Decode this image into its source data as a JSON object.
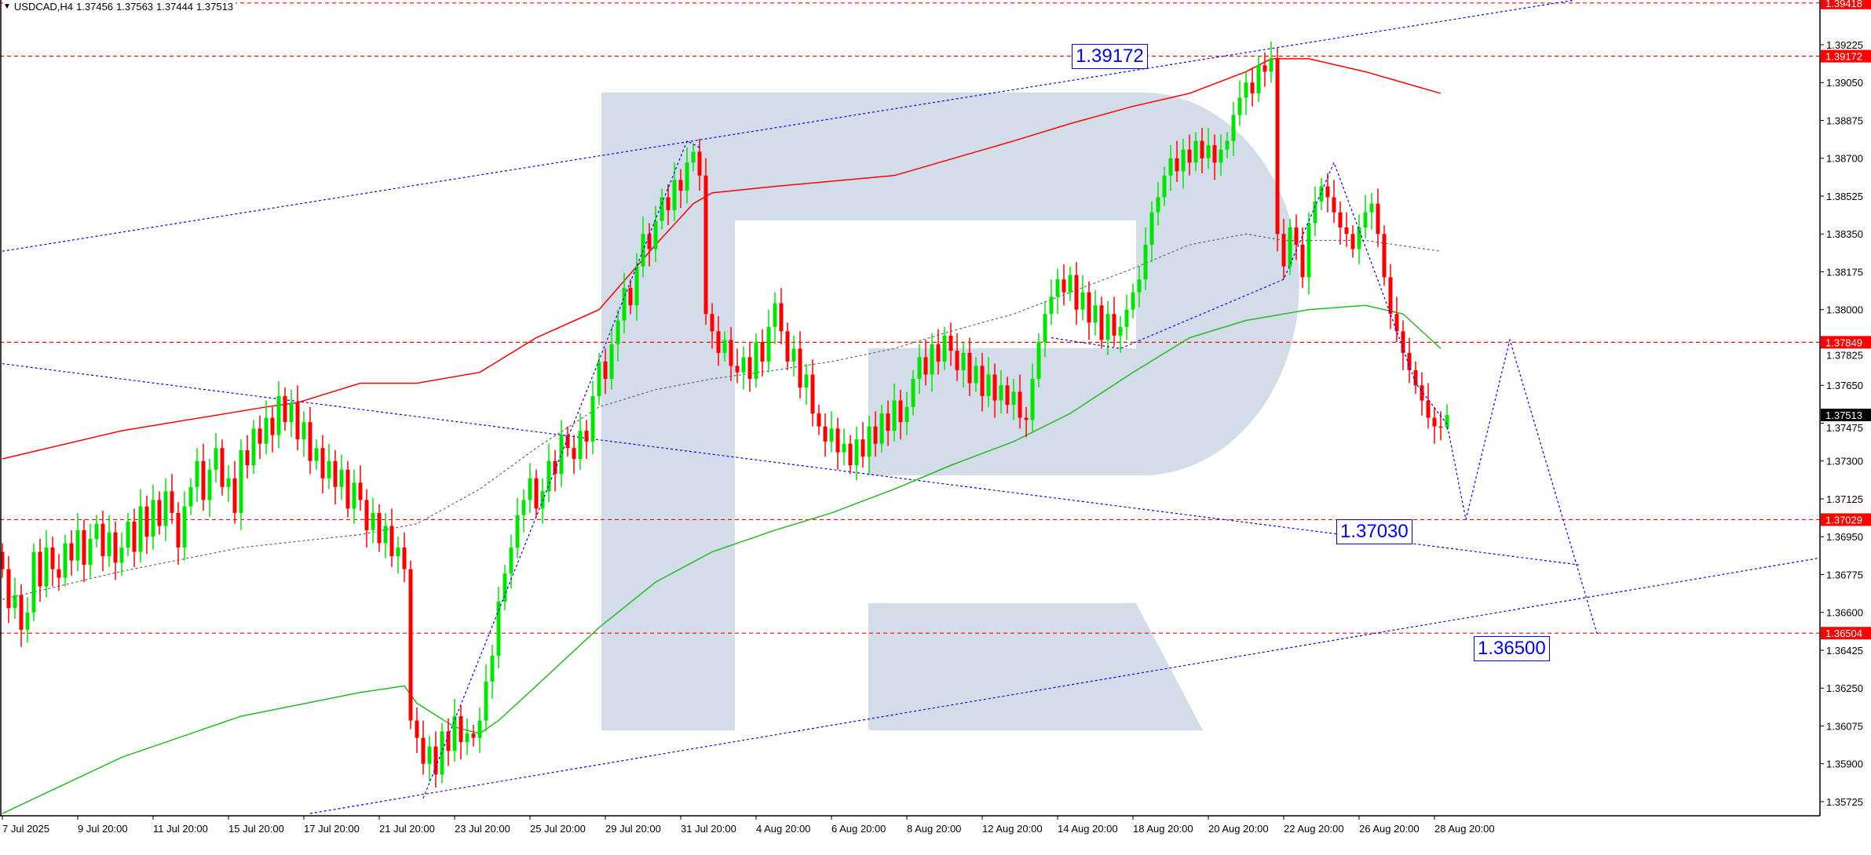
{
  "header": {
    "symbol_timeframe": "USDCAD,H4",
    "open": "1.37456",
    "high": "1.37563",
    "low": "1.37444",
    "close": "1.37513",
    "menu_icon": "triangle-down-icon"
  },
  "colors": {
    "bull": "#00e600",
    "bear": "#ff0000",
    "level_line": "#ff0000",
    "trend_line": "#0000ff",
    "ma_red": "#ff0000",
    "ma_green": "#22bb22",
    "ma_gray": "#666666",
    "watermark": "#d3dde9",
    "current_price_bg": "#000000"
  },
  "chart_data": {
    "type": "candlestick",
    "symbol": "USDCAD",
    "timeframe": "H4",
    "ylim": [
      1.3565,
      1.3943
    ],
    "grid": false,
    "y_ticks": [
      "1.39225",
      "1.39050",
      "1.38875",
      "1.38700",
      "1.38525",
      "1.38350",
      "1.38175",
      "1.38000",
      "1.37825",
      "1.37650",
      "1.37475",
      "1.37300",
      "1.37125",
      "1.36950",
      "1.36775",
      "1.36600",
      "1.36425",
      "1.36250",
      "1.36075",
      "1.35900",
      "1.35725"
    ],
    "x_ticks": [
      {
        "bar": 0,
        "label": "7 Jul 2025"
      },
      {
        "bar": 12,
        "label": "9 Jul 20:00"
      },
      {
        "bar": 24,
        "label": "11 Jul 20:00"
      },
      {
        "bar": 36,
        "label": "15 Jul 20:00"
      },
      {
        "bar": 48,
        "label": "17 Jul 20:00"
      },
      {
        "bar": 60,
        "label": "21 Jul 20:00"
      },
      {
        "bar": 72,
        "label": "23 Jul 20:00"
      },
      {
        "bar": 84,
        "label": "25 Jul 20:00"
      },
      {
        "bar": 96,
        "label": "29 Jul 20:00"
      },
      {
        "bar": 108,
        "label": "31 Jul 20:00"
      },
      {
        "bar": 120,
        "label": "4 Aug 20:00"
      },
      {
        "bar": 132,
        "label": "6 Aug 20:00"
      },
      {
        "bar": 144,
        "label": "8 Aug 20:00"
      },
      {
        "bar": 156,
        "label": "12 Aug 20:00"
      },
      {
        "bar": 168,
        "label": "14 Aug 20:00"
      },
      {
        "bar": 180,
        "label": "18 Aug 20:00"
      },
      {
        "bar": 192,
        "label": "20 Aug 20:00"
      },
      {
        "bar": 204,
        "label": "22 Aug 20:00"
      },
      {
        "bar": 216,
        "label": "26 Aug 20:00"
      },
      {
        "bar": 228,
        "label": "28 Aug 20:00"
      }
    ],
    "first_open": 1.3688,
    "closes": [
      1.368,
      1.3662,
      1.3668,
      1.3652,
      1.366,
      1.3688,
      1.3672,
      1.369,
      1.368,
      1.3676,
      1.3692,
      1.3684,
      1.3698,
      1.3682,
      1.3694,
      1.3701,
      1.3686,
      1.3697,
      1.3683,
      1.369,
      1.3702,
      1.3688,
      1.3709,
      1.3695,
      1.3712,
      1.37,
      1.3716,
      1.3706,
      1.369,
      1.3709,
      1.3718,
      1.373,
      1.3712,
      1.3726,
      1.3736,
      1.3718,
      1.3722,
      1.3706,
      1.3735,
      1.3728,
      1.3745,
      1.3738,
      1.375,
      1.3742,
      1.376,
      1.3748,
      1.3757,
      1.374,
      1.3748,
      1.373,
      1.3736,
      1.3722,
      1.373,
      1.3718,
      1.3726,
      1.3708,
      1.372,
      1.3712,
      1.3698,
      1.3706,
      1.3692,
      1.37,
      1.3686,
      1.369,
      1.368,
      1.361,
      1.3602,
      1.359,
      1.3598,
      1.3585,
      1.3605,
      1.3596,
      1.3612,
      1.36,
      1.3604,
      1.3602,
      1.361,
      1.3628,
      1.364,
      1.3665,
      1.3678,
      1.369,
      1.3705,
      1.3712,
      1.3722,
      1.3708,
      1.3716,
      1.373,
      1.3724,
      1.3742,
      1.3736,
      1.3731,
      1.3744,
      1.3739,
      1.376,
      1.3776,
      1.3768,
      1.3784,
      1.3795,
      1.381,
      1.3802,
      1.382,
      1.3835,
      1.3828,
      1.3841,
      1.3852,
      1.3846,
      1.386,
      1.3855,
      1.3868,
      1.3873,
      1.3862,
      1.3798,
      1.379,
      1.378,
      1.3786,
      1.3774,
      1.3771,
      1.3778,
      1.3768,
      1.3785,
      1.3776,
      1.3792,
      1.3803,
      1.379,
      1.3776,
      1.3782,
      1.3764,
      1.377,
      1.3752,
      1.3746,
      1.3739,
      1.3745,
      1.3734,
      1.3738,
      1.3728,
      1.374,
      1.3732,
      1.3746,
      1.3738,
      1.3752,
      1.3744,
      1.3758,
      1.3748,
      1.3755,
      1.3768,
      1.3778,
      1.377,
      1.3784,
      1.3776,
      1.3788,
      1.3781,
      1.3772,
      1.378,
      1.3766,
      1.3774,
      1.376,
      1.377,
      1.3758,
      1.3765,
      1.3756,
      1.3762,
      1.375,
      1.3749,
      1.3768,
      1.3785,
      1.3798,
      1.3806,
      1.3814,
      1.3808,
      1.3816,
      1.38,
      1.3808,
      1.3794,
      1.3802,
      1.3786,
      1.3798,
      1.3788,
      1.3792,
      1.38,
      1.3808,
      1.3814,
      1.383,
      1.3845,
      1.3852,
      1.3862,
      1.387,
      1.3864,
      1.3874,
      1.3868,
      1.3878,
      1.387,
      1.3876,
      1.3868,
      1.3874,
      1.3878,
      1.389,
      1.3898,
      1.3905,
      1.39,
      1.3913,
      1.391,
      1.3916,
      1.3835,
      1.382,
      1.3838,
      1.383,
      1.3815,
      1.384,
      1.385,
      1.3857,
      1.3852,
      1.3845,
      1.3838,
      1.3835,
      1.3828,
      1.3838,
      1.3845,
      1.3849,
      1.3835,
      1.3815,
      1.3798,
      1.379,
      1.378,
      1.3772,
      1.3765,
      1.3758,
      1.375,
      1.3746,
      1.37456,
      1.37513
    ],
    "last_bar": {
      "open": 1.37456,
      "high": 1.37563,
      "low": 1.37444,
      "close": 1.37513
    },
    "moving_averages": [
      {
        "color": "#ff0000",
        "style": "solid",
        "points": [
          [
            0,
            1.3731
          ],
          [
            19,
            1.3744
          ],
          [
            42,
            1.3755
          ],
          [
            47,
            1.3757
          ],
          [
            57,
            1.3766
          ],
          [
            66,
            1.3766
          ],
          [
            76,
            1.3771
          ],
          [
            85,
            1.3787
          ],
          [
            95,
            1.38
          ],
          [
            104,
            1.383
          ],
          [
            110,
            1.3849
          ],
          [
            113,
            1.3854
          ],
          [
            123,
            1.3857
          ],
          [
            142,
            1.3862
          ],
          [
            161,
            1.3878
          ],
          [
            170,
            1.3886
          ],
          [
            180,
            1.3894
          ],
          [
            189,
            1.39
          ],
          [
            198,
            1.391
          ],
          [
            202,
            1.3916
          ],
          [
            208,
            1.3916
          ],
          [
            217,
            1.391
          ],
          [
            229,
            1.39
          ]
        ]
      },
      {
        "color": "#22bb22",
        "style": "solid",
        "points": [
          [
            0,
            1.3567
          ],
          [
            19,
            1.3593
          ],
          [
            38,
            1.3612
          ],
          [
            57,
            1.3623
          ],
          [
            64,
            1.3626
          ],
          [
            66,
            1.3618
          ],
          [
            72,
            1.3607
          ],
          [
            76,
            1.3604
          ],
          [
            79,
            1.361
          ],
          [
            85,
            1.3626
          ],
          [
            95,
            1.3653
          ],
          [
            104,
            1.3674
          ],
          [
            113,
            1.3688
          ],
          [
            123,
            1.3698
          ],
          [
            132,
            1.3706
          ],
          [
            142,
            1.3717
          ],
          [
            151,
            1.3728
          ],
          [
            161,
            1.3739
          ],
          [
            170,
            1.3752
          ],
          [
            180,
            1.3771
          ],
          [
            189,
            1.3787
          ],
          [
            198,
            1.3795
          ],
          [
            208,
            1.38
          ],
          [
            217,
            1.3802
          ],
          [
            223,
            1.3798
          ],
          [
            229,
            1.3782
          ]
        ]
      },
      {
        "color": "#666666",
        "style": "dotted",
        "points": [
          [
            0,
            1.3666
          ],
          [
            19,
            1.3679
          ],
          [
            38,
            1.369
          ],
          [
            57,
            1.3696
          ],
          [
            66,
            1.3701
          ],
          [
            76,
            1.3717
          ],
          [
            85,
            1.3736
          ],
          [
            95,
            1.3755
          ],
          [
            104,
            1.3763
          ],
          [
            113,
            1.3768
          ],
          [
            123,
            1.3772
          ],
          [
            132,
            1.3776
          ],
          [
            142,
            1.3782
          ],
          [
            151,
            1.379
          ],
          [
            161,
            1.3798
          ],
          [
            170,
            1.3808
          ],
          [
            180,
            1.3819
          ],
          [
            189,
            1.383
          ],
          [
            198,
            1.3835
          ],
          [
            204,
            1.3832
          ],
          [
            217,
            1.3832
          ],
          [
            229,
            1.3827
          ]
        ]
      }
    ],
    "levels": [
      1.39418,
      1.39172,
      1.37849,
      1.37029,
      1.36504
    ],
    "level_labels": [
      "1.39418",
      "1.39172",
      "1.37849",
      "1.37029",
      "1.36504"
    ],
    "current_price_label": "1.37513",
    "current_price": 1.37513,
    "trend_lines": [
      {
        "points": [
          [
            0,
            1.3827
          ],
          [
            250,
            1.3943
          ]
        ]
      },
      {
        "points": [
          [
            0,
            1.3775
          ],
          [
            251,
            1.3682
          ]
        ]
      },
      {
        "points": [
          [
            49,
            1.3567
          ],
          [
            289,
            1.3685
          ]
        ]
      }
    ],
    "zigzags": [
      {
        "points": [
          [
            67,
            1.3574
          ],
          [
            109,
            1.3878
          ],
          [
            111,
            1.3875
          ]
        ]
      },
      {
        "points": [
          [
            167,
            1.3787
          ],
          [
            178,
            1.3782
          ],
          [
            204,
            1.3814
          ],
          [
            212,
            1.3868
          ],
          [
            221,
            1.3798
          ],
          [
            225,
            1.3766
          ],
          [
            230,
            1.3747
          ],
          [
            233,
            1.3703
          ],
          [
            240,
            1.3786
          ],
          [
            254,
            1.3649
          ]
        ]
      }
    ],
    "annotations": [
      {
        "text": "1.39172",
        "price": 1.39172
      },
      {
        "text": "1.37030",
        "price": 1.3703
      },
      {
        "text": "1.36500",
        "price": 1.365
      }
    ]
  }
}
